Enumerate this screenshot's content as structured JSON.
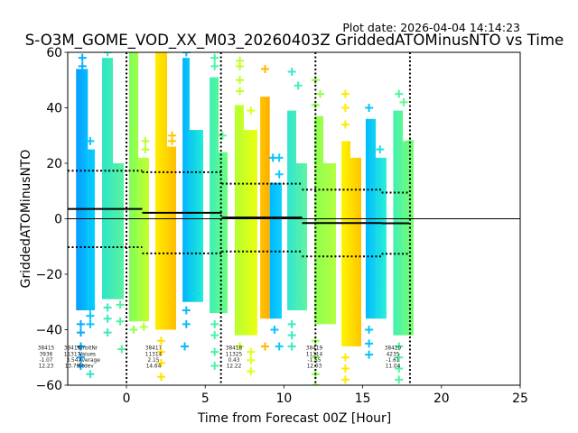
{
  "chart_data": {
    "type": "scatter",
    "title": "S-O3M_GOME_VOD_XX_M03_20260403Z GriddedATOMinusNTO vs Time",
    "plot_date": "Plot date: 2026-04-04 14:14:23",
    "xlabel": "Time from Forecast 00Z [Hour]",
    "ylabel": "GriddedATOMinusNTO",
    "xlim": [
      -3.73,
      25
    ],
    "ylim": [
      -60,
      60
    ],
    "grid": false,
    "legend": "none",
    "x_ticks": [
      0,
      5,
      10,
      15,
      20,
      25
    ],
    "x_tick_labels": [
      "0",
      "5",
      "10",
      "15",
      "20",
      "25"
    ],
    "y_ticks": [
      -60,
      -40,
      -20,
      0,
      20,
      40,
      60
    ],
    "y_tick_labels": [
      "−60",
      "−40",
      "−20",
      "0",
      "20",
      "40",
      "60"
    ],
    "zero_line": 0,
    "forecast_boundaries_x": [
      0,
      6,
      12,
      18
    ],
    "stats_labels": [
      "OrbitNr",
      "Values",
      "Average",
      "Stdev"
    ],
    "orbits": [
      {
        "orbit": "38415",
        "values": "3936",
        "average": "-1.07",
        "stdev": "12.23",
        "start": null,
        "end": null
      },
      {
        "orbit": "38416",
        "values": "11317",
        "average": "3.54",
        "stdev": "13.79",
        "start": -3.73,
        "end": 1.0
      },
      {
        "orbit": "38417",
        "values": "11314",
        "average": "2.15",
        "stdev": "14.64",
        "start": 1.0,
        "end": 6.05
      },
      {
        "orbit": "38418",
        "values": "11325",
        "average": "0.43",
        "stdev": "12.22",
        "start": 6.05,
        "end": 11.15
      },
      {
        "orbit": "38419",
        "values": "11314",
        "average": "-1.55",
        "stdev": "12.03",
        "start": 11.15,
        "end": 16.2
      },
      {
        "orbit": "38420",
        "values": "4235",
        "average": "-1.61",
        "stdev": "11.04",
        "start": 16.2,
        "end": 17.95
      }
    ],
    "clusters": [
      {
        "x": [
          -3.2,
          -2.45,
          -2.01
        ],
        "y_max": 54,
        "y_shoulder": 25,
        "y_min": -33,
        "colors": [
          "#0a9bff",
          "#00d4ff"
        ],
        "outliers": [
          [
            -2.8,
            58
          ],
          [
            -2.8,
            55
          ],
          [
            -2.8,
            51
          ],
          [
            -2.3,
            28
          ],
          [
            -2.3,
            -28
          ],
          [
            -2.3,
            -32
          ],
          [
            -2.9,
            -38
          ],
          [
            -2.9,
            -41
          ],
          [
            -2.9,
            -46
          ],
          [
            -2.9,
            -50
          ],
          [
            -2.9,
            -53
          ],
          [
            -2.3,
            -35
          ],
          [
            -2.3,
            -38
          ]
        ]
      },
      {
        "x": [
          -1.55,
          -0.86,
          -0.17
        ],
        "y_max": 58,
        "y_shoulder": 20,
        "y_min": -29,
        "colors": [
          "#2ee6c8",
          "#5af2a0"
        ],
        "outliers": [
          [
            -1.2,
            60
          ],
          [
            -0.4,
            -31
          ],
          [
            -0.4,
            -37
          ],
          [
            -1.2,
            -32
          ],
          [
            -1.2,
            -36
          ],
          [
            -1.2,
            -41
          ],
          [
            -0.3,
            -47
          ],
          [
            -2.3,
            -56
          ]
        ]
      },
      {
        "x": [
          0.17,
          0.75,
          1.43
        ],
        "y_max": 60,
        "y_shoulder": 22,
        "y_min": -37,
        "colors": [
          "#7cff5c",
          "#c8ff28"
        ],
        "outliers": [
          [
            1.2,
            28
          ],
          [
            1.2,
            25
          ],
          [
            0.45,
            -40
          ],
          [
            1.1,
            -39
          ]
        ]
      },
      {
        "x": [
          1.83,
          2.58,
          3.15
        ],
        "y_max": 60,
        "y_shoulder": 26,
        "y_min": -40,
        "colors": [
          "#ffee00",
          "#ffbe00"
        ],
        "outliers": [
          [
            2.9,
            30
          ],
          [
            2.9,
            28
          ],
          [
            2.9,
            -26
          ],
          [
            2.9,
            -30
          ],
          [
            2.2,
            -44
          ],
          [
            2.2,
            -48
          ],
          [
            2.2,
            -52
          ],
          [
            2.2,
            -57
          ]
        ]
      },
      {
        "x": [
          3.56,
          4.01,
          4.87
        ],
        "y_max": 58,
        "y_shoulder": 32,
        "y_min": -30,
        "colors": [
          "#00b4ff",
          "#20ecd8"
        ],
        "outliers": [
          [
            3.8,
            60
          ],
          [
            4.6,
            26
          ],
          [
            4.6,
            23
          ],
          [
            3.8,
            -33
          ],
          [
            3.8,
            -38
          ],
          [
            4.4,
            -27
          ],
          [
            3.7,
            -46
          ]
        ]
      },
      {
        "x": [
          5.28,
          5.85,
          6.42
        ],
        "y_max": 51,
        "y_shoulder": 24,
        "y_min": -34,
        "colors": [
          "#3cf0b4",
          "#6cff80"
        ],
        "outliers": [
          [
            5.6,
            58
          ],
          [
            5.6,
            55
          ],
          [
            6.1,
            30
          ],
          [
            5.6,
            -38
          ],
          [
            5.6,
            -42
          ],
          [
            5.6,
            -48
          ],
          [
            5.6,
            -53
          ]
        ]
      },
      {
        "x": [
          6.88,
          7.45,
          8.31
        ],
        "y_max": 41,
        "y_shoulder": 32,
        "y_min": -42,
        "colors": [
          "#b4ff30",
          "#ecff10"
        ],
        "outliers": [
          [
            7.2,
            57
          ],
          [
            7.2,
            55
          ],
          [
            7.2,
            50
          ],
          [
            7.2,
            46
          ],
          [
            7.9,
            39
          ],
          [
            7.2,
            -46
          ],
          [
            7.9,
            -48
          ],
          [
            7.9,
            -51
          ],
          [
            7.9,
            -55
          ]
        ]
      },
      {
        "x": [
          8.49,
          8.49,
          9.1
        ],
        "y_max": 44,
        "y_shoulder": 44,
        "y_min": -36,
        "colors": [
          "#ffc400",
          "#ffae00"
        ],
        "outliers": [
          [
            8.8,
            54
          ],
          [
            8.8,
            -46
          ]
        ]
      },
      {
        "x": [
          9.1,
          9.1,
          9.86
        ],
        "y_max": 13,
        "y_shoulder": 13,
        "y_min": -36,
        "colors": [
          "#00b8ff",
          "#10d0ff"
        ],
        "outliers": [
          [
            9.3,
            22
          ],
          [
            9.7,
            22
          ],
          [
            9.7,
            16
          ],
          [
            9.4,
            -40
          ],
          [
            9.7,
            -46
          ]
        ]
      },
      {
        "x": [
          10.21,
          10.78,
          11.47
        ],
        "y_max": 39,
        "y_shoulder": 20,
        "y_min": -33,
        "colors": [
          "#30e6d0",
          "#60f4a0"
        ],
        "outliers": [
          [
            10.5,
            53
          ],
          [
            10.9,
            48
          ],
          [
            10.5,
            36
          ],
          [
            11.2,
            -22
          ],
          [
            11.2,
            -26
          ],
          [
            10.5,
            -38
          ],
          [
            10.5,
            -42
          ],
          [
            10.5,
            -46
          ]
        ]
      },
      {
        "x": [
          11.93,
          12.5,
          13.3
        ],
        "y_max": 37,
        "y_shoulder": 20,
        "y_min": -38,
        "colors": [
          "#8cff50",
          "#b4ff40"
        ],
        "outliers": [
          [
            12.0,
            50
          ],
          [
            12.3,
            45
          ],
          [
            12.0,
            41
          ],
          [
            12.9,
            -30
          ],
          [
            12.0,
            -44
          ],
          [
            12.0,
            -50
          ],
          [
            12.0,
            -56
          ],
          [
            12.0,
            -60
          ]
        ]
      },
      {
        "x": [
          13.65,
          14.22,
          14.91
        ],
        "y_max": 28,
        "y_shoulder": 22,
        "y_min": -46,
        "colors": [
          "#fff500",
          "#ffc400"
        ],
        "outliers": [
          [
            13.9,
            45
          ],
          [
            13.9,
            40
          ],
          [
            13.9,
            34
          ],
          [
            14.6,
            -26
          ],
          [
            13.9,
            -50
          ],
          [
            13.9,
            -54
          ],
          [
            13.9,
            -58
          ]
        ]
      },
      {
        "x": [
          15.19,
          15.83,
          16.51
        ],
        "y_max": 36,
        "y_shoulder": 22,
        "y_min": -36,
        "colors": [
          "#00bcff",
          "#28f0d8"
        ],
        "outliers": [
          [
            15.4,
            40
          ],
          [
            16.1,
            25
          ],
          [
            15.4,
            -40
          ],
          [
            15.4,
            -45
          ],
          [
            15.4,
            -49
          ]
        ]
      },
      {
        "x": [
          16.94,
          17.55,
          18.23
        ],
        "y_max": 39,
        "y_shoulder": 28,
        "y_min": -42,
        "colors": [
          "#40f0b0",
          "#7cff70"
        ],
        "outliers": [
          [
            17.3,
            45
          ],
          [
            17.6,
            42
          ],
          [
            18.0,
            28
          ],
          [
            17.3,
            -46
          ],
          [
            17.3,
            -50
          ],
          [
            17.3,
            -54
          ],
          [
            17.3,
            -58
          ]
        ]
      }
    ]
  }
}
